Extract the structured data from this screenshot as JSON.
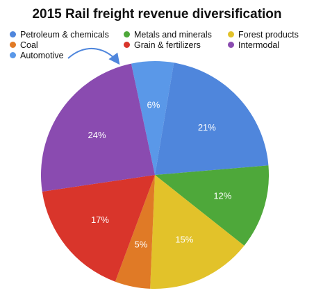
{
  "chart_data": {
    "type": "pie",
    "title": "2015 Rail freight revenue diversification",
    "legend_placement": "top",
    "slices": [
      {
        "name": "Automotive",
        "value": 6,
        "label": "6%",
        "color": "#5a98e8"
      },
      {
        "name": "Petroleum & chemicals",
        "value": 21,
        "label": "21%",
        "color": "#4f86dc"
      },
      {
        "name": "Metals and minerals",
        "value": 12,
        "label": "12%",
        "color": "#4ea83a"
      },
      {
        "name": "Forest products",
        "value": 15,
        "label": "15%",
        "color": "#e2c22a"
      },
      {
        "name": "Coal",
        "value": 5,
        "label": "5%",
        "color": "#e07a26"
      },
      {
        "name": "Grain & fertilizers",
        "value": 17,
        "label": "17%",
        "color": "#d9352b"
      },
      {
        "name": "Intermodal",
        "value": 24,
        "label": "24%",
        "color": "#8a4bb0"
      }
    ],
    "legend": [
      {
        "name": "Petroleum & chemicals",
        "color": "#4f86dc"
      },
      {
        "name": "Metals and minerals",
        "color": "#4ea83a"
      },
      {
        "name": "Forest products",
        "color": "#e2c22a"
      },
      {
        "name": "Coal",
        "color": "#e07a26"
      },
      {
        "name": "Grain & fertilizers",
        "color": "#d9352b"
      },
      {
        "name": "Intermodal",
        "color": "#8a4bb0"
      },
      {
        "name": "Automotive",
        "color": "#5a98e8"
      }
    ],
    "annotation_arrow_color": "#4f86dc"
  }
}
